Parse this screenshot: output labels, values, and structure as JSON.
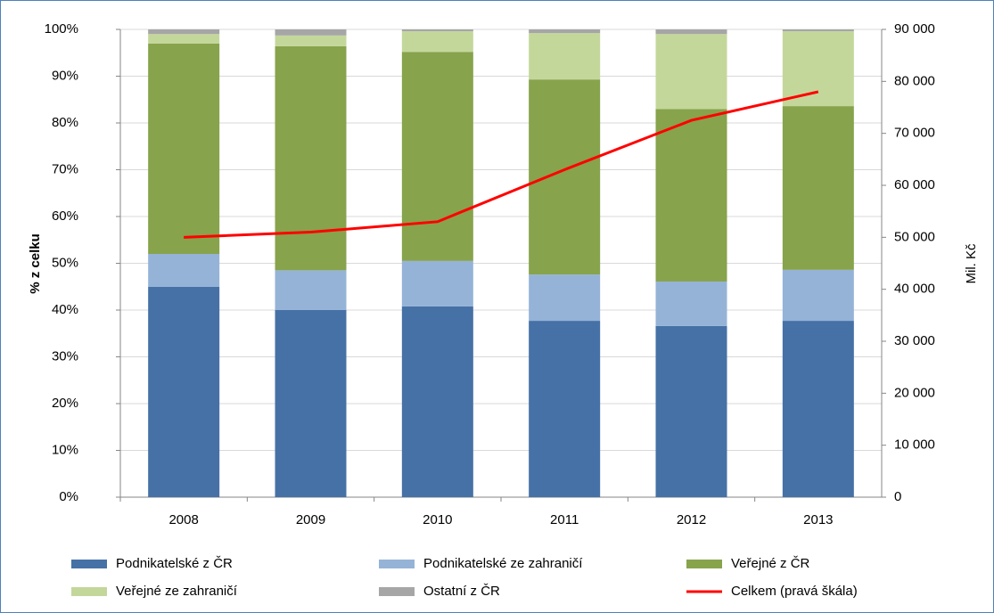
{
  "chart_data": {
    "type": "bar",
    "stacked": true,
    "y_label": "% z celku",
    "y2_label": "Mil. Kč",
    "categories": [
      "2008",
      "2009",
      "2010",
      "2011",
      "2012",
      "2013"
    ],
    "series": [
      {
        "name": "Podnikatelské z ČR",
        "color": "#4671a6",
        "values": [
          45,
          40,
          40.8,
          37.7,
          36.6,
          37.7
        ]
      },
      {
        "name": "Podnikatelské ze zahraničí",
        "color": "#95b3d7",
        "values": [
          7,
          8.5,
          9.7,
          9.9,
          9.5,
          10.9
        ]
      },
      {
        "name": "Veřejné z ČR",
        "color": "#87a34c",
        "values": [
          45,
          47.9,
          44.7,
          41.7,
          36.9,
          35
        ]
      },
      {
        "name": "Veřejné ze zahraničí",
        "color": "#c4d79b",
        "values": [
          2,
          2.3,
          4.4,
          9.9,
          16,
          16
        ]
      },
      {
        "name": "Ostatní z ČR",
        "color": "#a6a6a6",
        "values": [
          1,
          1.3,
          0.4,
          0.8,
          1,
          0.4
        ]
      },
      {
        "name": "Celkem (pravá škála)",
        "color": "#ff0000",
        "type": "line",
        "axis": "y2",
        "values": [
          50000,
          51000,
          53000,
          63000,
          72500,
          78000
        ]
      }
    ],
    "ylim": [
      0,
      100
    ],
    "yticks": [
      {
        "value": 0,
        "label": "0%"
      },
      {
        "value": 10,
        "label": "10%"
      },
      {
        "value": 20,
        "label": "20%"
      },
      {
        "value": 30,
        "label": "30%"
      },
      {
        "value": 40,
        "label": "40%"
      },
      {
        "value": 50,
        "label": "50%"
      },
      {
        "value": 60,
        "label": "60%"
      },
      {
        "value": 70,
        "label": "70%"
      },
      {
        "value": 80,
        "label": "80%"
      },
      {
        "value": 90,
        "label": "90%"
      },
      {
        "value": 100,
        "label": "100%"
      }
    ],
    "y2lim": [
      0,
      90000
    ],
    "y2ticks": [
      0,
      {
        "value": 10000,
        "label": "10 000"
      },
      {
        "value": 20000,
        "label": "20 000"
      },
      {
        "value": 30000,
        "label": "30 000"
      },
      {
        "value": 40000,
        "label": "40 000"
      },
      {
        "value": 50000,
        "label": "50 000"
      },
      {
        "value": 60000,
        "label": "60 000"
      },
      {
        "value": 70000,
        "label": "70 000"
      },
      {
        "value": 80000,
        "label": "80 000"
      },
      {
        "value": 90000,
        "label": "90 000"
      }
    ],
    "grid": true,
    "legend": "bottom"
  }
}
